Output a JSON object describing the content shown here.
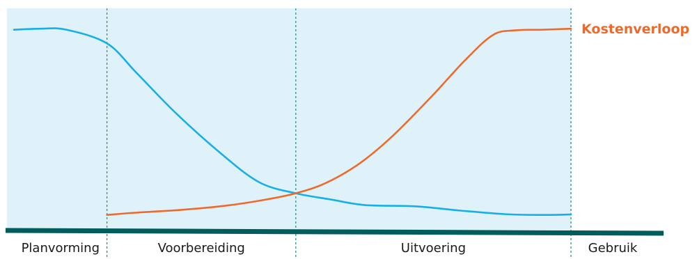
{
  "chart_data": {
    "type": "line",
    "title": "",
    "xlabel": "",
    "ylabel": "",
    "grid": false,
    "xlim": [
      0,
      100
    ],
    "ylim": [
      0,
      100
    ],
    "phases": [
      {
        "label": "Planvorming",
        "start": 0,
        "end": 16.7
      },
      {
        "label": "Voorbereiding",
        "start": 16.7,
        "end": 50.6
      },
      {
        "label": "Uitvoering",
        "start": 50.6,
        "end": 100
      },
      {
        "label": "Gebruik",
        "start": 100,
        "end": 118
      }
    ],
    "series": [
      {
        "name": "",
        "color": "#17b0e6",
        "x": [
          0,
          5,
          9.4,
          16.7,
          22,
          29,
          37,
          44,
          50.6,
          57,
          63,
          72,
          80,
          88,
          94,
          100
        ],
        "y": [
          92.5,
          93,
          92.5,
          86,
          72,
          53,
          34,
          20,
          14.7,
          11.7,
          9.1,
          8.5,
          6.5,
          4.8,
          4.4,
          4.6
        ]
      },
      {
        "name": "Kostenverloop",
        "color": "#ee6a2c",
        "x": [
          16.7,
          22,
          30,
          38,
          45,
          50.6,
          56,
          62,
          68,
          75,
          81,
          86,
          90,
          95,
          100
        ],
        "y": [
          4.4,
          5.5,
          6.8,
          8.8,
          11.6,
          14.7,
          19.6,
          28.8,
          42,
          60.8,
          78,
          90,
          92.2,
          92.5,
          93
        ]
      }
    ],
    "colors": {
      "plot_background": "#e0f2f9",
      "baseline": "#005d5b",
      "divider": "#3a8a8a"
    }
  }
}
